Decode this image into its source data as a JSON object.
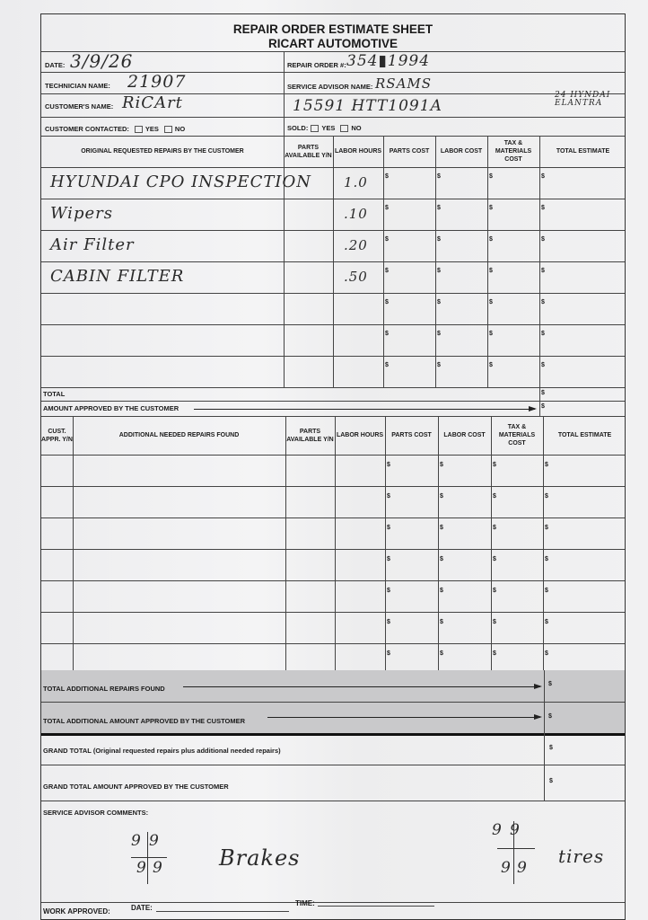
{
  "header": {
    "title": "REPAIR ORDER ESTIMATE SHEET",
    "subtitle": "RICART AUTOMOTIVE"
  },
  "fields": {
    "date_label": "DATE:",
    "date_value": "3/9/26",
    "repair_order_label": "REPAIR ORDER #:",
    "repair_order_value": "354▮1994",
    "technician_label": "TECHNICIAN NAME:",
    "technician_value": "21907",
    "advisor_label": "SERVICE ADVISOR NAME:",
    "advisor_value": "RSAMS",
    "customer_label": "CUSTOMER'S NAME:",
    "customer_value": "RiCArt",
    "vehicle_value": "15591  HTT1091A",
    "vehicle_note": "24 HYNDAI ELANTRA",
    "contacted_label": "CUSTOMER CONTACTED:",
    "sold_label": "SOLD:",
    "yes": "YES",
    "no": "NO"
  },
  "original": {
    "headers": [
      "ORIGINAL REQUESTED REPAIRS BY THE CUSTOMER",
      "PARTS AVAILABLE Y/N",
      "LABOR HOURS",
      "PARTS COST",
      "LABOR COST",
      "TAX & MATERIALS COST",
      "TOTAL ESTIMATE"
    ],
    "rows": [
      {
        "repair": "HYUNDAI CPO INSPECTION",
        "hours": "1.0"
      },
      {
        "repair": "Wipers",
        "hours": ".10"
      },
      {
        "repair": "Air Filter",
        "hours": ".20"
      },
      {
        "repair": "CABIN FILTER",
        "hours": ".50"
      },
      {
        "repair": "",
        "hours": ""
      },
      {
        "repair": "",
        "hours": ""
      },
      {
        "repair": "",
        "hours": ""
      }
    ],
    "total_label": "TOTAL",
    "approved_label": "AMOUNT APPROVED BY THE CUSTOMER"
  },
  "additional": {
    "headers": [
      "CUST. APPR. Y/N",
      "ADDITIONAL NEEDED REPAIRS FOUND",
      "PARTS AVAILABLE Y/N",
      "LABOR HOURS",
      "PARTS COST",
      "LABOR COST",
      "TAX & MATERIALS COST",
      "TOTAL ESTIMATE"
    ],
    "row_count": 7,
    "total_label": "TOTAL ADDITIONAL REPAIRS FOUND",
    "approved_label": "TOTAL ADDITIONAL AMOUNT APPROVED BY THE CUSTOMER"
  },
  "grand": {
    "total_label": "GRAND TOTAL (Original requested repairs plus additional needed repairs)",
    "approved_label": "GRAND TOTAL AMOUNT APPROVED BY THE CUSTOMER"
  },
  "comments": {
    "label": "SERVICE ADVISOR COMMENTS:",
    "note_left": "Brakes",
    "note_right": "tires",
    "tally": "9"
  },
  "footer": {
    "work_approved": "WORK APPROVED:",
    "date": "DATE:",
    "time": "TIME:"
  },
  "currency": "$"
}
